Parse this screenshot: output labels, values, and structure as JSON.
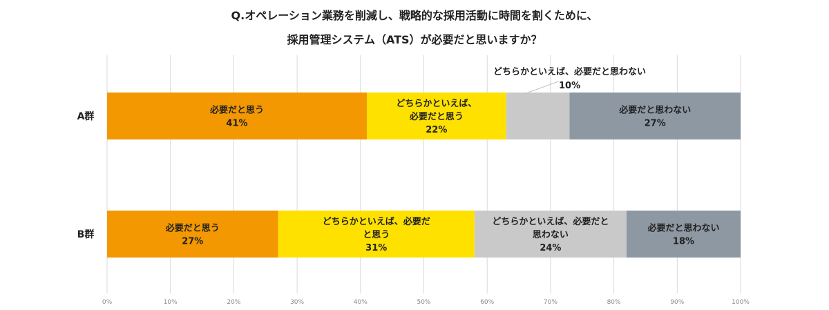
{
  "chart_data": {
    "type": "bar",
    "orientation": "horizontal-stacked-100",
    "title_lines": [
      "Q.オペレーション業務を削減し、戦略的な採用活動に時間を割くために、",
      "採用管理システム（ATS）が必要だと思いますか？"
    ],
    "categories": [
      "A群",
      "B群"
    ],
    "series": [
      {
        "name": "必要だと思う",
        "values": [
          41,
          27
        ],
        "color": "#F39800"
      },
      {
        "name": "どちらかといえば、必要だと思う",
        "values": [
          22,
          31
        ],
        "color": "#FFE100"
      },
      {
        "name": "どちらかといえば、必要だと思わない",
        "values": [
          10,
          24
        ],
        "color": "#C9C9C9"
      },
      {
        "name": "必要だと思わない",
        "values": [
          27,
          18
        ],
        "color": "#8E98A3"
      }
    ],
    "segment_labels": [
      [
        {
          "lines": [
            "必要だと思う"
          ],
          "pct": "41%"
        },
        {
          "lines": [
            "どちらかといえば、",
            "必要だと思う"
          ],
          "pct": "22%"
        },
        {
          "lines": [
            "どちらかといえば、必要だと思わない"
          ],
          "pct": "10%",
          "callout": true
        },
        {
          "lines": [
            "必要だと思わない"
          ],
          "pct": "27%"
        }
      ],
      [
        {
          "lines": [
            "必要だと思う"
          ],
          "pct": "27%"
        },
        {
          "lines": [
            "どちらかといえば、必要だ",
            "と思う"
          ],
          "pct": "31%"
        },
        {
          "lines": [
            "どちらかといえば、必要だと",
            "思わない"
          ],
          "pct": "24%"
        },
        {
          "lines": [
            "必要だと思わない"
          ],
          "pct": "18%"
        }
      ]
    ],
    "x_ticks": [
      "0%",
      "10%",
      "20%",
      "30%",
      "40%",
      "50%",
      "60%",
      "70%",
      "80%",
      "90%",
      "100%"
    ],
    "xlim": [
      0,
      100
    ],
    "grid": true,
    "legend": "none"
  }
}
